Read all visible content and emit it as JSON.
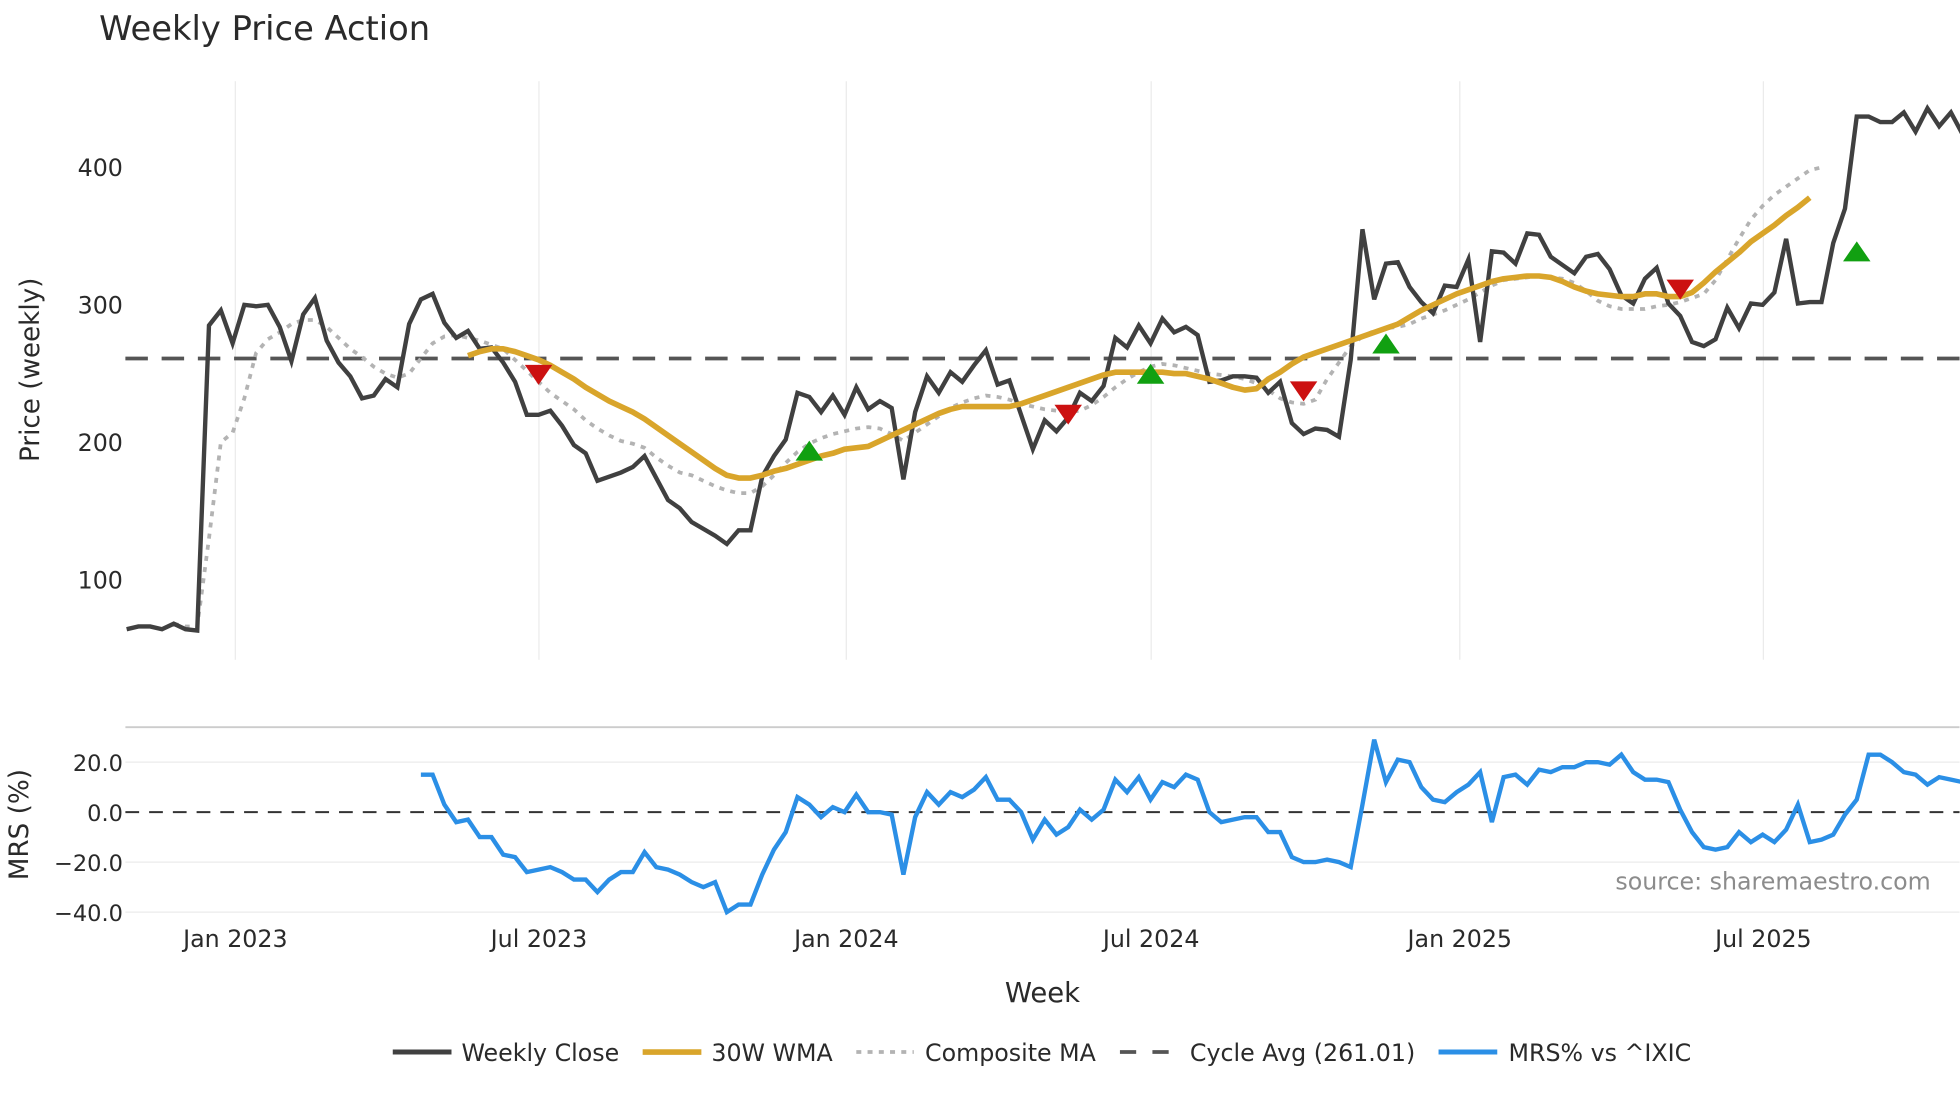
{
  "chart_data": [
    {
      "type": "line",
      "title": "Weekly Price Action",
      "xlabel": "",
      "ylabel": "Price (weekly)",
      "yticks": [
        100,
        200,
        300,
        400
      ],
      "ylim": [
        40,
        465
      ],
      "x_ticks": [
        "Jan 2023",
        "Jul 2023",
        "Jan 2024",
        "Jul 2024",
        "Jan 2025",
        "Jul 2025"
      ],
      "grid": "vertical",
      "x_start_label": "approx. Nov 2022",
      "x_unit": "week index (0 = first plotted week)",
      "series": [
        {
          "name": "Weekly Close",
          "color": "#404040",
          "start": 0,
          "values": [
            64,
            66,
            66,
            64,
            68,
            64,
            63,
            285,
            296,
            272,
            300,
            299,
            300,
            284,
            259,
            293,
            305,
            274,
            258,
            248,
            232,
            234,
            246,
            240,
            286,
            304,
            308,
            287,
            276,
            281,
            268,
            269,
            258,
            244,
            220,
            220,
            223,
            212,
            198,
            192,
            172,
            175,
            178,
            182,
            190,
            174,
            158,
            152,
            142,
            137,
            132,
            126,
            136,
            136,
            175,
            190,
            202,
            236,
            233,
            222,
            234,
            220,
            240,
            224,
            230,
            225,
            173,
            222,
            248,
            236,
            251,
            244,
            256,
            267,
            242,
            245,
            220,
            195,
            216,
            208,
            218,
            236,
            230,
            241,
            276,
            269,
            285,
            272,
            290,
            280,
            284,
            278,
            244,
            245,
            248,
            248,
            247,
            236,
            244,
            214,
            206,
            210,
            209,
            204,
            260,
            355,
            304,
            330,
            331,
            313,
            302,
            294,
            314,
            313,
            333,
            273,
            339,
            338,
            330,
            352,
            351,
            335,
            329,
            323,
            335,
            337,
            326,
            307,
            301,
            319,
            327,
            301,
            292,
            273,
            270,
            275,
            298,
            283,
            301,
            300,
            309,
            348,
            301,
            302,
            302,
            345,
            370,
            437,
            437,
            433,
            433,
            440,
            426,
            443,
            430,
            440,
            424
          ],
          "line_style": "solid"
        },
        {
          "name": "30W WMA",
          "color": "#D9A52B",
          "start": 29,
          "values": [
            263,
            266,
            268,
            268,
            266,
            263,
            260,
            256,
            251,
            246,
            240,
            235,
            230,
            226,
            222,
            217,
            211,
            205,
            199,
            193,
            187,
            181,
            176,
            174,
            174,
            176,
            179,
            181,
            184,
            187,
            190,
            192,
            195,
            196,
            197,
            201,
            205,
            209,
            213,
            217,
            221,
            224,
            226,
            226,
            226,
            226,
            226,
            228,
            231,
            234,
            237,
            240,
            243,
            246,
            249,
            251,
            251,
            251,
            251,
            251,
            250,
            250,
            248,
            246,
            243,
            240,
            238,
            239,
            246,
            251,
            257,
            262,
            265,
            268,
            271,
            274,
            277,
            280,
            283,
            286,
            291,
            296,
            300,
            304,
            308,
            311,
            314,
            317,
            319,
            320,
            321,
            321,
            320,
            317,
            313,
            310,
            308,
            307,
            306,
            306,
            308,
            308,
            306,
            306,
            309,
            316,
            324,
            331,
            338,
            346,
            352,
            358,
            365,
            371,
            378
          ],
          "line_style": "solid"
        },
        {
          "name": "Composite MA",
          "color": "#b3b3b3",
          "start": 4,
          "values": [
            68,
            66,
            66,
            130,
            200,
            207,
            232,
            265,
            275,
            280,
            286,
            289,
            289,
            284,
            276,
            268,
            262,
            255,
            250,
            247,
            250,
            261,
            272,
            277,
            278,
            276,
            274,
            271,
            268,
            260,
            252,
            244,
            236,
            230,
            224,
            216,
            210,
            205,
            201,
            199,
            196,
            189,
            183,
            178,
            176,
            172,
            168,
            165,
            163,
            163,
            168,
            176,
            185,
            193,
            199,
            203,
            206,
            208,
            210,
            211,
            210,
            206,
            201,
            207,
            213,
            219,
            225,
            229,
            232,
            234,
            233,
            231,
            228,
            226,
            224,
            223,
            222,
            223,
            227,
            233,
            240,
            246,
            251,
            255,
            257,
            256,
            254,
            252,
            250,
            249,
            248,
            246,
            243,
            238,
            232,
            229,
            228,
            231,
            246,
            258,
            270,
            277,
            281,
            283,
            284,
            286,
            290,
            293,
            296,
            300,
            304,
            309,
            314,
            318,
            319,
            320,
            321,
            320,
            319,
            316,
            310,
            303,
            299,
            297,
            297,
            297,
            299,
            300,
            302,
            305,
            308,
            318,
            333,
            348,
            362,
            372,
            380,
            386,
            392,
            398,
            400
          ],
          "line_style": "dotted"
        }
      ],
      "reference_lines": [
        {
          "name": "Cycle Avg (261.01)",
          "value": 261.01,
          "color": "#555555",
          "line_style": "dashed"
        }
      ],
      "markers": [
        {
          "type": "sell",
          "shape": "triangle-down",
          "color": "#cc1111",
          "week": 35,
          "value": 250
        },
        {
          "type": "buy",
          "shape": "triangle-up",
          "color": "#11a011",
          "week": 58,
          "value": 193
        },
        {
          "type": "sell",
          "shape": "triangle-down",
          "color": "#cc1111",
          "week": 80,
          "value": 221
        },
        {
          "type": "buy",
          "shape": "triangle-up",
          "color": "#11a011",
          "week": 87,
          "value": 249
        },
        {
          "type": "sell",
          "shape": "triangle-down",
          "color": "#cc1111",
          "week": 100,
          "value": 238
        },
        {
          "type": "buy",
          "shape": "triangle-up",
          "color": "#11a011",
          "week": 107,
          "value": 271
        },
        {
          "type": "sell",
          "shape": "triangle-down",
          "color": "#cc1111",
          "week": 132,
          "value": 312
        },
        {
          "type": "buy",
          "shape": "triangle-up",
          "color": "#11a011",
          "week": 147,
          "value": 338
        }
      ]
    },
    {
      "type": "line",
      "title": "",
      "xlabel": "Week",
      "ylabel": "MRS (%)",
      "yticks": [
        -40.0,
        -20.0,
        0.0,
        20.0
      ],
      "ytick_labels": [
        "−40.0",
        "−20.0",
        "0.0",
        "20.0"
      ],
      "ylim": [
        -42,
        33
      ],
      "x_ticks": [
        "Jan 2023",
        "Jul 2023",
        "Jan 2024",
        "Jul 2024",
        "Jan 2025",
        "Jul 2025"
      ],
      "grid": "horizontal",
      "series": [
        {
          "name": "MRS% vs ^IXIC",
          "color": "#2b8fe6",
          "start": 25,
          "values": [
            15,
            15,
            3,
            -4,
            -3,
            -10,
            -10,
            -17,
            -18,
            -24,
            -23,
            -22,
            -24,
            -27,
            -27,
            -32,
            -27,
            -24,
            -24,
            -16,
            -22,
            -23,
            -25,
            -28,
            -30,
            -28,
            -40,
            -37,
            -37,
            -25,
            -15,
            -8,
            6,
            3,
            -2,
            2,
            0,
            7,
            0,
            0,
            -1,
            -25,
            -2,
            8,
            3,
            8,
            6,
            9,
            14,
            5,
            5,
            0,
            -11,
            -3,
            -9,
            -6,
            1,
            -3,
            1,
            13,
            8,
            14,
            5,
            12,
            10,
            15,
            13,
            0,
            -4,
            -3,
            -2,
            -2,
            -8,
            -8,
            -18,
            -20,
            -20,
            -19,
            -20,
            -22,
            3,
            29,
            12,
            21,
            20,
            10,
            5,
            4,
            8,
            11,
            16,
            -4,
            14,
            15,
            11,
            17,
            16,
            18,
            18,
            20,
            20,
            19,
            23,
            16,
            13,
            13,
            12,
            1,
            -8,
            -14,
            -15,
            -14,
            -8,
            -12,
            -9,
            -12,
            -7,
            3,
            -12,
            -11,
            -9,
            -1,
            5,
            23,
            23,
            20,
            16,
            15,
            11,
            14,
            13,
            12,
            5
          ]
        }
      ],
      "reference_lines": [
        {
          "name": "zero",
          "value": 0,
          "color": "#333333",
          "line_style": "dashed"
        }
      ],
      "annotation": "source: sharemaestro.com"
    }
  ],
  "legend": {
    "position": "bottom",
    "items": [
      {
        "label": "Weekly Close",
        "color": "#404040",
        "style": "solid"
      },
      {
        "label": "30W WMA",
        "color": "#D9A52B",
        "style": "solid"
      },
      {
        "label": "Composite MA",
        "color": "#b3b3b3",
        "style": "dotted"
      },
      {
        "label": "Cycle Avg (261.01)",
        "color": "#555555",
        "style": "dashed"
      },
      {
        "label": "MRS% vs ^IXIC",
        "color": "#2b8fe6",
        "style": "solid"
      }
    ]
  },
  "texts": {
    "title": "Weekly Price Action",
    "price_ylabel": "Price (weekly)",
    "mrs_ylabel": "MRS (%)",
    "xlabel": "Week",
    "source": "source: sharemaestro.com",
    "price_ticks": [
      "100",
      "200",
      "300",
      "400"
    ],
    "mrs_ticks": [
      "20.0",
      "0.0",
      "−20.0",
      "−40.0"
    ],
    "x_ticks": [
      "Jan 2023",
      "Jul 2023",
      "Jan 2024",
      "Jul 2024",
      "Jan 2025",
      "Jul 2025"
    ],
    "legend": [
      "Weekly Close",
      "30W WMA",
      "Composite MA",
      "Cycle Avg (261.01)",
      "MRS% vs ^IXIC"
    ]
  }
}
